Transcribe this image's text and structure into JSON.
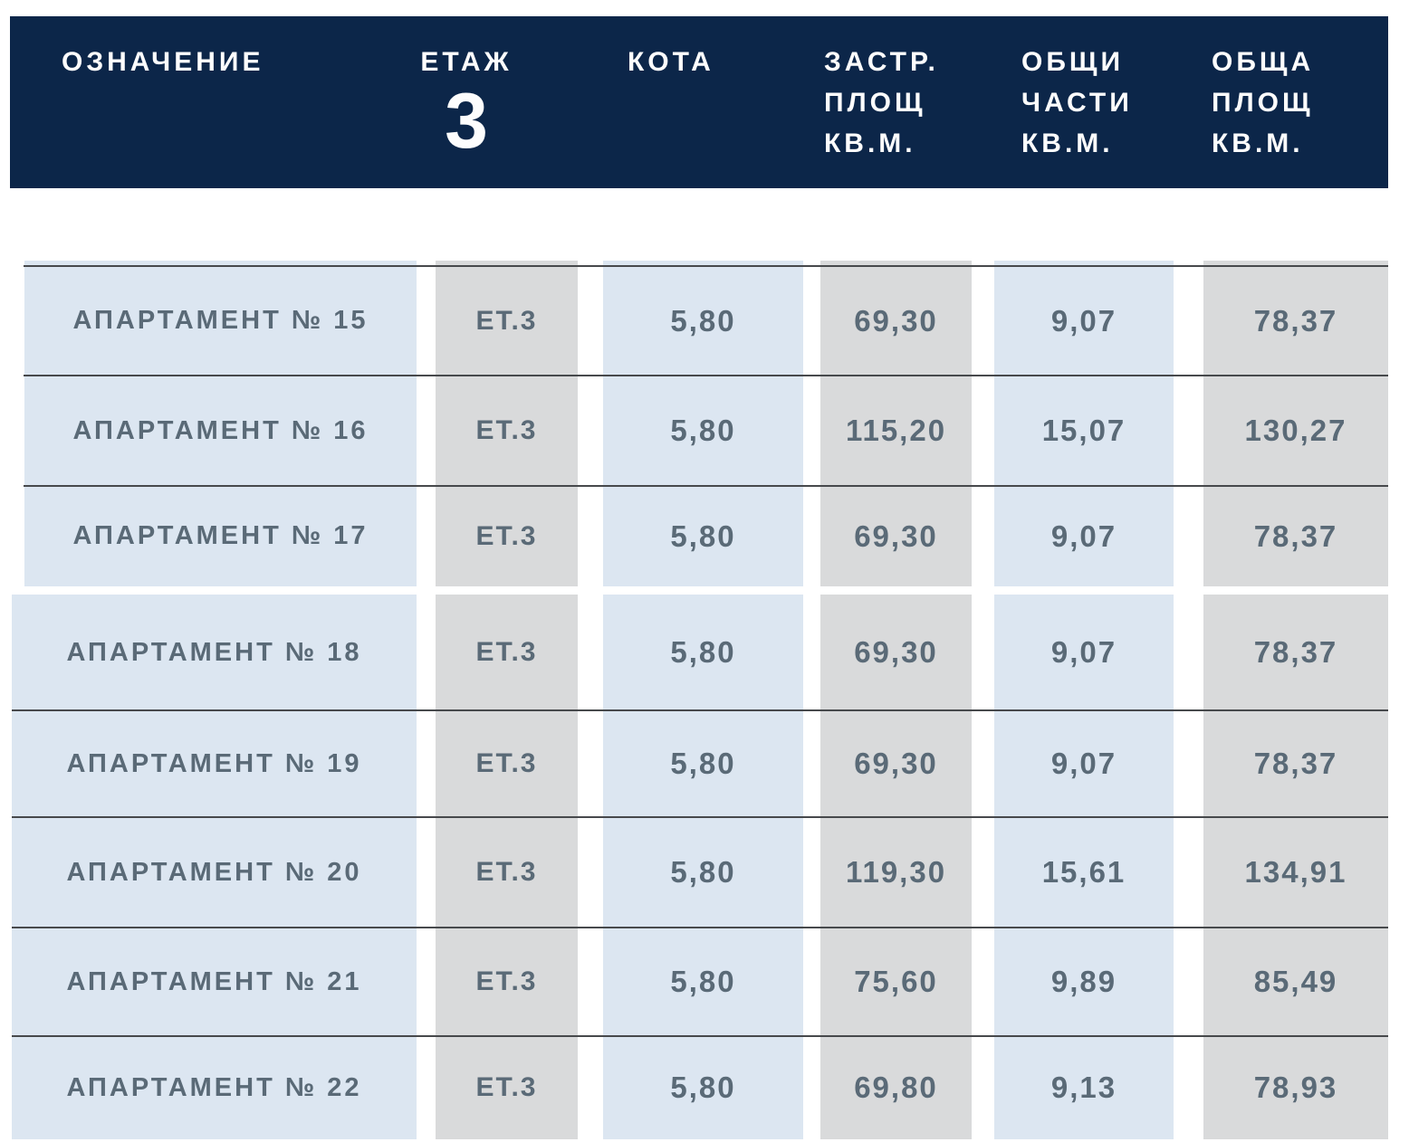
{
  "header": {
    "col_designation": "ОЗНАЧЕНИЕ",
    "col_floor": "ЕТАЖ",
    "floor_number": "3",
    "col_level": "КОТА",
    "col_built": [
      "ЗАСТР.",
      "ПЛОЩ",
      "КВ.М."
    ],
    "col_common": [
      "ОБЩИ",
      "ЧАСТИ",
      "КВ.М."
    ],
    "col_total": [
      "ОБЩА",
      "ПЛОЩ",
      "КВ.М."
    ]
  },
  "rows": [
    {
      "name": "АПАРТАМЕНТ № 15",
      "floor": "ЕТ.3",
      "level": "5,80",
      "built": "69,30",
      "common": "9,07",
      "total": "78,37"
    },
    {
      "name": "АПАРТАМЕНТ № 16",
      "floor": "ЕТ.3",
      "level": "5,80",
      "built": "115,20",
      "common": "15,07",
      "total": "130,27"
    },
    {
      "name": "АПАРТАМЕНТ № 17",
      "floor": "ЕТ.3",
      "level": "5,80",
      "built": "69,30",
      "common": "9,07",
      "total": "78,37"
    },
    {
      "name": "АПАРТАМЕНТ № 18",
      "floor": "ЕТ.3",
      "level": "5,80",
      "built": "69,30",
      "common": "9,07",
      "total": "78,37"
    },
    {
      "name": "АПАРТАМЕНТ № 19",
      "floor": "ЕТ.3",
      "level": "5,80",
      "built": "69,30",
      "common": "9,07",
      "total": "78,37"
    },
    {
      "name": "АПАРТАМЕНТ № 20",
      "floor": "ЕТ.3",
      "level": "5,80",
      "built": "119,30",
      "common": "15,61",
      "total": "134,91"
    },
    {
      "name": "АПАРТАМЕНТ № 21",
      "floor": "ЕТ.3",
      "level": "5,80",
      "built": "75,60",
      "common": "9,89",
      "total": "85,49"
    },
    {
      "name": "АПАРТАМЕНТ № 22",
      "floor": "ЕТ.3",
      "level": "5,80",
      "built": "69,80",
      "common": "9,13",
      "total": "78,93"
    }
  ],
  "colors": {
    "header_bg": "#0c2649",
    "header_text": "#fdfdfd",
    "column_blue": "#dce6f1",
    "column_gray": "#d9dadb",
    "cell_text": "#5a6a77",
    "row_line": "#47494c"
  }
}
